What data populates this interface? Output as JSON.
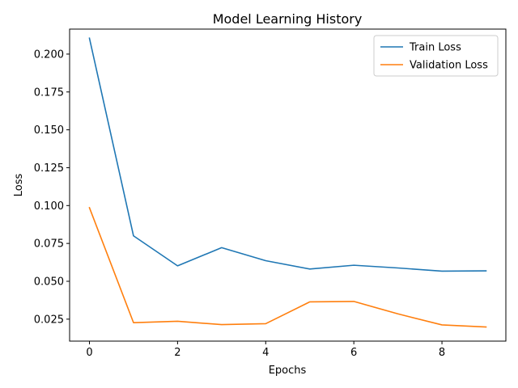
{
  "chart_data": {
    "type": "line",
    "title": "Model Learning History",
    "xlabel": "Epochs",
    "ylabel": "Loss",
    "x": [
      0,
      1,
      2,
      3,
      4,
      5,
      6,
      7,
      8,
      9
    ],
    "xlim": [
      -0.45,
      9.45
    ],
    "ylim": [
      0.0105,
      0.2165
    ],
    "xticks": [
      0,
      2,
      4,
      6,
      8
    ],
    "yticks": [
      0.025,
      0.05,
      0.075,
      0.1,
      0.125,
      0.15,
      0.175,
      0.2
    ],
    "ytick_labels": [
      "0.025",
      "0.050",
      "0.075",
      "0.100",
      "0.125",
      "0.150",
      "0.175",
      "0.200"
    ],
    "grid": false,
    "legend_position": "top-right",
    "series": [
      {
        "name": "Train Loss",
        "color": "#1f77b4",
        "values": [
          0.2105,
          0.08,
          0.0602,
          0.0722,
          0.0636,
          0.0581,
          0.0606,
          0.0588,
          0.0567,
          0.0569
        ]
      },
      {
        "name": "Validation Loss",
        "color": "#ff7f0e",
        "values": [
          0.0986,
          0.0227,
          0.0236,
          0.0214,
          0.022,
          0.0364,
          0.0367,
          0.0285,
          0.0212,
          0.0198
        ]
      }
    ]
  }
}
